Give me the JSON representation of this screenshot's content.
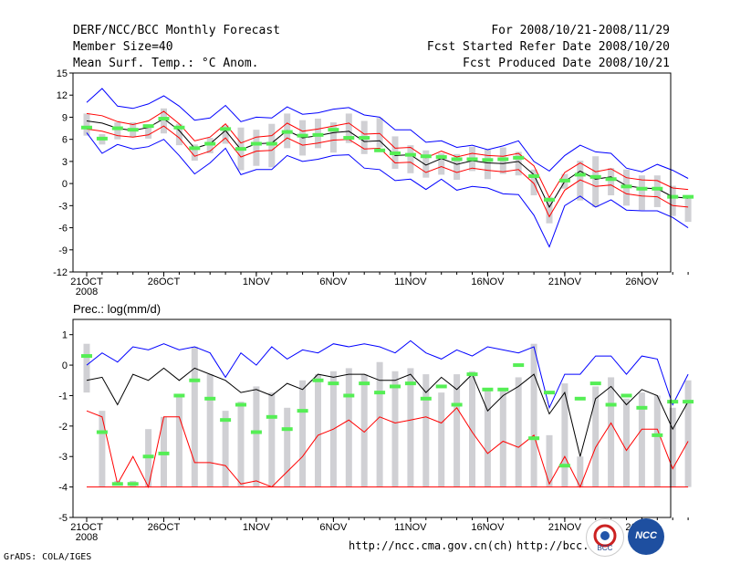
{
  "header": {
    "title": "DERF/NCC/BCC Monthly Forecast",
    "member_size": "Member Size=40",
    "variable": "Mean Surf. Temp.: °C Anom.",
    "period": "For 2008/10/21-2008/11/29",
    "started": "Fcst Started Refer Date 2008/10/20",
    "produced": "Fcst Produced Date 2008/10/21"
  },
  "footer": {
    "url1": "http://ncc.cma.gov.cn(ch)",
    "url2": "http://bcc.c",
    "credit": "GrADS: COLA/IGES",
    "logo_left": "BCC",
    "logo_right": "NCC"
  },
  "colors": {
    "envelope": "#0000ff",
    "spread": "#ff0000",
    "mean": "#000000",
    "marker": "#55ee55",
    "bar": "#d0d0d4"
  },
  "chart_data": [
    {
      "type": "ensemble-box",
      "title": "Mean Surf. Temp.: °C Anom.",
      "ylim": [
        -12,
        15
      ],
      "yticks": [
        -12,
        -9,
        -6,
        -3,
        0,
        3,
        6,
        9,
        12,
        15
      ],
      "xticks": [
        {
          "day": 0,
          "label": "21OCT"
        },
        {
          "day": 5,
          "label": "26OCT"
        },
        {
          "day": 11,
          "label": "1NOV"
        },
        {
          "day": 16,
          "label": "6NOV"
        },
        {
          "day": 21,
          "label": "11NOV"
        },
        {
          "day": 26,
          "label": "16NOV"
        },
        {
          "day": 31,
          "label": "21NOV"
        },
        {
          "day": 36,
          "label": "26NOV"
        }
      ],
      "year_label": "2008",
      "days": 40,
      "mean": [
        8.5,
        8.2,
        7.5,
        7.2,
        7.6,
        8.8,
        7.2,
        4.8,
        5.4,
        7.2,
        4.6,
        5.4,
        5.5,
        7.2,
        6.2,
        6.5,
        6.9,
        7.1,
        5.7,
        5.8,
        3.8,
        3.9,
        2.5,
        3.4,
        2.6,
        3.1,
        2.8,
        2.7,
        3.0,
        1.2,
        -3.2,
        0.3,
        1.7,
        0.6,
        0.9,
        -0.3,
        -0.6,
        -0.7,
        -1.8,
        -2.0
      ],
      "upper": [
        9.5,
        9.2,
        8.4,
        8.0,
        8.5,
        9.8,
        8.1,
        5.8,
        6.3,
        8.1,
        5.5,
        6.3,
        6.5,
        8.2,
        7.1,
        7.4,
        7.8,
        8.2,
        6.7,
        6.8,
        4.8,
        4.9,
        3.5,
        4.4,
        3.6,
        4.1,
        3.8,
        3.7,
        4.1,
        2.4,
        -1.9,
        1.5,
        2.8,
        1.6,
        2.0,
        0.8,
        0.5,
        0.4,
        -0.6,
        -0.8
      ],
      "lower": [
        7.4,
        7.1,
        6.5,
        6.3,
        6.6,
        7.8,
        6.2,
        3.7,
        4.4,
        6.2,
        3.6,
        4.4,
        4.5,
        6.2,
        5.2,
        5.5,
        5.9,
        6.0,
        4.7,
        4.8,
        2.8,
        2.9,
        1.5,
        2.3,
        1.5,
        2.1,
        1.8,
        1.6,
        1.9,
        0.0,
        -4.5,
        -0.9,
        0.5,
        -0.4,
        -0.2,
        -1.4,
        -1.7,
        -1.8,
        -3.0,
        -3.2
      ],
      "max": [
        11.0,
        12.9,
        10.5,
        10.2,
        10.8,
        11.9,
        10.5,
        8.6,
        8.9,
        10.6,
        8.4,
        9.0,
        8.9,
        10.4,
        9.4,
        9.6,
        10.1,
        10.3,
        9.3,
        9.0,
        7.3,
        7.3,
        5.6,
        5.8,
        4.9,
        5.2,
        4.6,
        5.1,
        5.8,
        3.0,
        1.7,
        3.8,
        5.2,
        4.3,
        4.1,
        2.1,
        1.6,
        2.6,
        1.8,
        0.7
      ],
      "min": [
        6.9,
        4.1,
        5.3,
        4.7,
        5.0,
        6.0,
        3.8,
        1.3,
        2.8,
        4.8,
        1.2,
        1.9,
        1.9,
        3.8,
        3.0,
        3.3,
        3.8,
        3.9,
        2.1,
        1.9,
        0.4,
        0.6,
        -0.8,
        0.6,
        -0.9,
        -0.4,
        -0.6,
        -1.4,
        -1.5,
        -4.3,
        -8.6,
        -3.0,
        -1.7,
        -3.2,
        -2.2,
        -3.6,
        -3.7,
        -3.7,
        -4.6,
        -6.0
      ],
      "box_top": [
        9.5,
        6.7,
        8.3,
        8.3,
        7.7,
        10.2,
        8.1,
        5.3,
        6.2,
        7.9,
        7.6,
        7.3,
        8.1,
        9.5,
        8.6,
        8.8,
        8.3,
        9.5,
        8.5,
        8.9,
        6.4,
        5.2,
        4.5,
        4.1,
        4.0,
        5.0,
        4.6,
        4.9,
        4.3,
        1.9,
        -1.8,
        1.3,
        3.1,
        3.7,
        2.1,
        1.9,
        1.1,
        1.1,
        -0.3,
        -1.8
      ],
      "box_bot": [
        6.5,
        5.3,
        6.0,
        6.3,
        6.1,
        6.8,
        5.2,
        3.1,
        4.1,
        5.4,
        1.8,
        2.4,
        2.2,
        4.8,
        3.8,
        4.8,
        4.2,
        5.5,
        4.0,
        4.9,
        2.0,
        1.4,
        0.8,
        1.2,
        0.5,
        1.7,
        0.6,
        1.3,
        1.1,
        -1.6,
        -5.4,
        -0.7,
        -2.3,
        -3.2,
        -1.6,
        -3.0,
        -3.6,
        -3.2,
        -4.4,
        -5.2
      ],
      "marker": [
        7.6,
        6.1,
        7.5,
        7.3,
        7.8,
        8.8,
        7.6,
        4.8,
        5.4,
        7.4,
        4.7,
        5.4,
        5.4,
        7.0,
        6.5,
        6.6,
        7.3,
        6.2,
        6.2,
        4.5,
        4.1,
        3.9,
        3.7,
        3.6,
        3.3,
        3.3,
        3.2,
        3.3,
        3.5,
        1.0,
        -2.2,
        0.4,
        1.2,
        0.9,
        0.6,
        -0.4,
        -0.7,
        -0.7,
        -1.8,
        -1.8
      ]
    },
    {
      "type": "ensemble-box",
      "title": "Prec.: log(mm/d)",
      "ylim": [
        -5,
        1.5
      ],
      "yticks": [
        -5,
        -4,
        -3,
        -2,
        -1,
        0,
        1
      ],
      "xticks": [
        {
          "day": 0,
          "label": "21OCT"
        },
        {
          "day": 5,
          "label": "26OCT"
        },
        {
          "day": 11,
          "label": "1NOV"
        },
        {
          "day": 16,
          "label": "6NOV"
        },
        {
          "day": 21,
          "label": "11NOV"
        },
        {
          "day": 26,
          "label": "16NOV"
        },
        {
          "day": 31,
          "label": "21NOV"
        },
        {
          "day": 36,
          "label": "26NOV"
        }
      ],
      "year_label": "2008",
      "days": 40,
      "max": [
        0.0,
        0.4,
        0.1,
        0.6,
        0.5,
        0.7,
        0.5,
        0.6,
        0.4,
        -0.4,
        0.4,
        0.0,
        0.6,
        0.2,
        0.5,
        0.4,
        0.7,
        0.6,
        0.7,
        0.6,
        0.4,
        0.8,
        0.4,
        0.2,
        0.5,
        0.3,
        0.6,
        0.5,
        0.4,
        0.6,
        -1.4,
        -0.3,
        -0.3,
        0.3,
        0.3,
        -0.3,
        0.3,
        0.2,
        -1.3,
        -0.3
      ],
      "mean": [
        -0.5,
        -0.4,
        -1.3,
        -0.3,
        -0.5,
        -0.1,
        -0.5,
        -0.1,
        -0.3,
        -0.5,
        -0.9,
        -0.8,
        -1.0,
        -0.6,
        -0.8,
        -0.3,
        -0.4,
        -0.3,
        -0.3,
        -0.5,
        -0.5,
        -0.3,
        -0.9,
        -0.4,
        -0.8,
        -0.3,
        -1.5,
        -1.0,
        -0.7,
        -0.3,
        -1.6,
        -0.9,
        -3.0,
        -1.1,
        -0.7,
        -1.3,
        -0.8,
        -1.0,
        -2.1,
        -1.2
      ],
      "min": [
        -1.5,
        -1.7,
        -3.9,
        -3.0,
        -4.0,
        -1.7,
        -1.7,
        -3.2,
        -3.2,
        -3.3,
        -3.9,
        -3.8,
        -4.0,
        -3.5,
        -3.0,
        -2.3,
        -2.1,
        -1.8,
        -2.2,
        -1.7,
        -1.9,
        -1.8,
        -1.7,
        -1.9,
        -1.4,
        -2.2,
        -2.9,
        -2.5,
        -2.7,
        -2.3,
        -3.9,
        -3.0,
        -4.0,
        -2.7,
        -1.9,
        -2.8,
        -2.1,
        -2.1,
        -3.4,
        -2.5
      ],
      "box_top": [
        0.7,
        -1.5,
        -3.8,
        -3.8,
        -2.1,
        -1.7,
        -1.0,
        0.6,
        -0.3,
        -1.5,
        -1.2,
        -0.7,
        -0.9,
        -1.4,
        -0.5,
        -0.3,
        -0.2,
        -0.1,
        -0.3,
        0.1,
        -0.2,
        -0.1,
        -0.3,
        -0.9,
        -0.3,
        -0.2,
        -0.8,
        -0.8,
        -0.4,
        0.7,
        -2.3,
        -0.6,
        -3.0,
        -0.7,
        -0.4,
        -1.1,
        -0.9,
        -1.0,
        -1.4,
        -0.5
      ],
      "box_bot": [
        -0.9,
        -4.0,
        -3.9,
        -4.0,
        -4.0,
        -4.0,
        -4.0,
        -4.0,
        -4.0,
        -4.0,
        -4.0,
        -4.0,
        -4.0,
        -4.0,
        -4.0,
        -4.0,
        -4.0,
        -4.0,
        -4.0,
        -4.0,
        -4.0,
        -4.0,
        -4.0,
        -4.0,
        -4.0,
        -4.0,
        -4.0,
        -4.0,
        -4.0,
        -4.0,
        -4.0,
        -4.0,
        -4.0,
        -4.0,
        -4.0,
        -4.0,
        -4.0,
        -4.0,
        -4.0,
        -4.0
      ],
      "marker": [
        0.3,
        -2.2,
        -3.9,
        -3.9,
        -3.0,
        -2.9,
        -1.0,
        -0.5,
        -1.1,
        -1.8,
        -1.3,
        -2.2,
        -1.7,
        -2.1,
        -1.5,
        -0.5,
        -0.6,
        -1.0,
        -0.6,
        -0.9,
        -0.7,
        -0.6,
        -1.1,
        -0.7,
        -1.3,
        -0.3,
        -0.8,
        -0.8,
        0.0,
        -2.4,
        -0.9,
        -3.3,
        -1.1,
        -0.6,
        -1.3,
        -1.0,
        -1.4,
        -2.3,
        -1.2,
        -1.2
      ]
    }
  ]
}
